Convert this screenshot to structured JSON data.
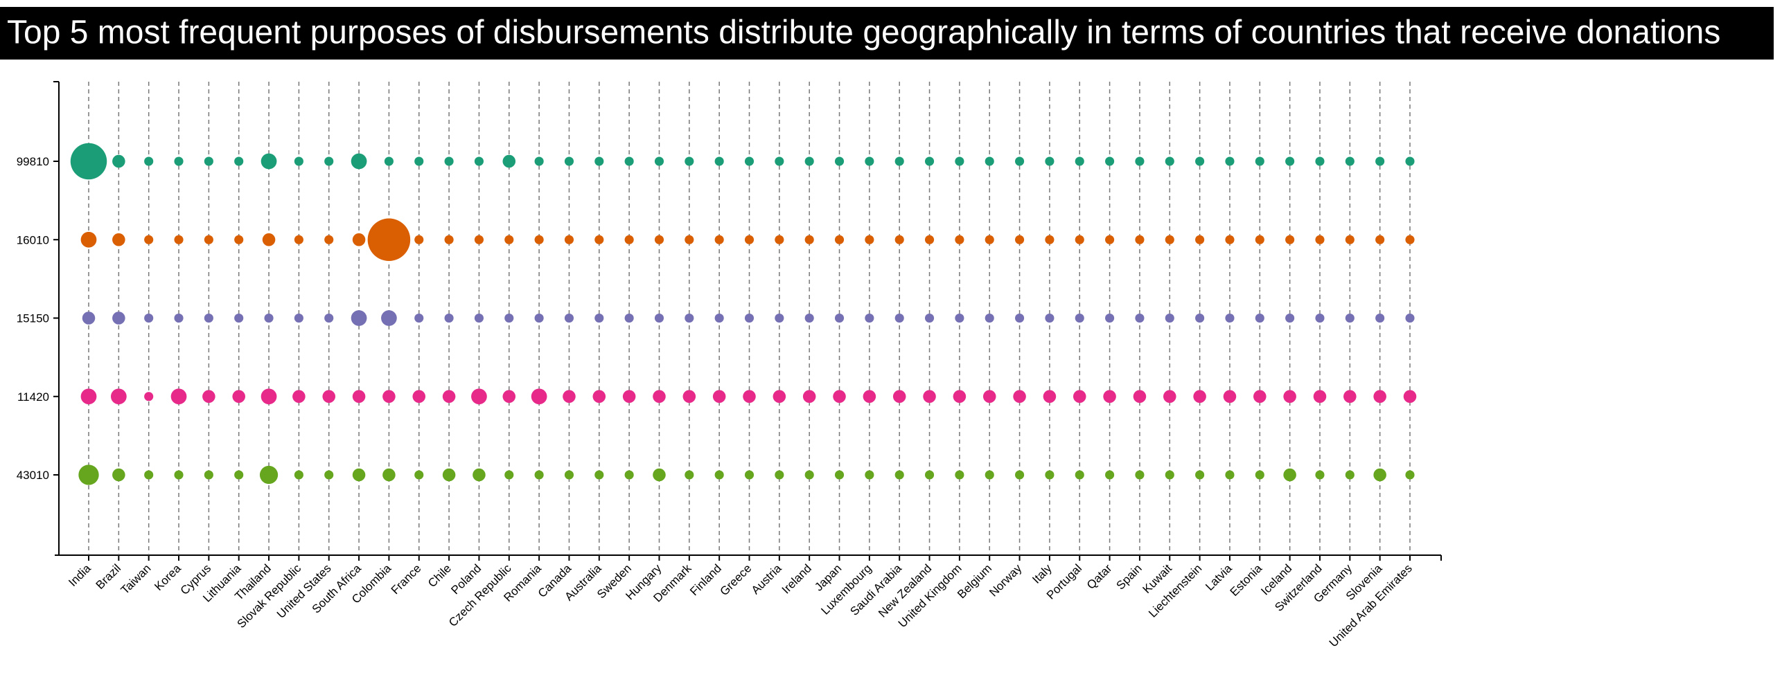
{
  "chart_data": {
    "type": "bubble",
    "title": "Top 5 most frequent purposes of disbursements distribute geographically in terms of countries that receive donations",
    "categories": [
      "India",
      "Brazil",
      "Taiwan",
      "Korea",
      "Cyprus",
      "Lithuania",
      "Thailand",
      "Slovak Republic",
      "United States",
      "South Africa",
      "Colombia",
      "France",
      "Chile",
      "Poland",
      "Czech Republic",
      "Romania",
      "Canada",
      "Australia",
      "Sweden",
      "Hungary",
      "Denmark",
      "Finland",
      "Greece",
      "Austria",
      "Ireland",
      "Japan",
      "Luxembourg",
      "Saudi Arabia",
      "New Zealand",
      "United Kingdom",
      "Belgium",
      "Norway",
      "Italy",
      "Portugal",
      "Qatar",
      "Spain",
      "Kuwait",
      "Liechtenstein",
      "Latvia",
      "Estonia",
      "Iceland",
      "Switzerland",
      "Germany",
      "Slovenia",
      "United Arab Emirates"
    ],
    "series": [
      {
        "name": "99810",
        "color": "#1b9e77",
        "values": [
          16,
          2,
          1,
          1,
          1,
          1,
          3,
          1,
          1,
          3,
          1,
          1,
          1,
          1,
          2,
          1,
          1,
          1,
          1,
          1,
          1,
          1,
          1,
          1,
          1,
          1,
          1,
          1,
          1,
          1,
          1,
          1,
          1,
          1,
          1,
          1,
          1,
          1,
          1,
          1,
          1,
          1,
          1,
          1,
          1
        ]
      },
      {
        "name": "16010",
        "color": "#d95f02",
        "values": [
          3,
          2,
          1,
          1,
          1,
          1,
          2,
          1,
          1,
          2,
          22,
          1,
          1,
          1,
          1,
          1,
          1,
          1,
          1,
          1,
          1,
          1,
          1,
          1,
          1,
          1,
          1,
          1,
          1,
          1,
          1,
          1,
          1,
          1,
          1,
          1,
          1,
          1,
          1,
          1,
          1,
          1,
          1,
          1,
          1
        ]
      },
      {
        "name": "15150",
        "color": "#7570b3",
        "values": [
          2,
          2,
          1,
          1,
          1,
          1,
          1,
          1,
          1,
          3,
          3,
          1,
          1,
          1,
          1,
          1,
          1,
          1,
          1,
          1,
          1,
          1,
          1,
          1,
          1,
          1,
          1,
          1,
          1,
          1,
          1,
          1,
          1,
          1,
          1,
          1,
          1,
          1,
          1,
          1,
          1,
          1,
          1,
          1,
          1
        ]
      },
      {
        "name": "11420",
        "color": "#e7298a",
        "values": [
          3,
          3,
          1,
          3,
          2,
          2,
          3,
          2,
          2,
          2,
          2,
          2,
          2,
          3,
          2,
          3,
          2,
          2,
          2,
          2,
          2,
          2,
          2,
          2,
          2,
          2,
          2,
          2,
          2,
          2,
          2,
          2,
          2,
          2,
          2,
          2,
          2,
          2,
          2,
          2,
          2,
          2,
          2,
          2,
          2
        ]
      },
      {
        "name": "43010",
        "color": "#66a61e",
        "values": [
          5,
          2,
          1,
          1,
          1,
          1,
          4,
          1,
          1,
          2,
          2,
          1,
          2,
          2,
          1,
          1,
          1,
          1,
          1,
          2,
          1,
          1,
          1,
          1,
          1,
          1,
          1,
          1,
          1,
          1,
          1,
          1,
          1,
          1,
          1,
          1,
          1,
          1,
          1,
          1,
          2,
          1,
          1,
          2,
          1
        ]
      }
    ]
  }
}
